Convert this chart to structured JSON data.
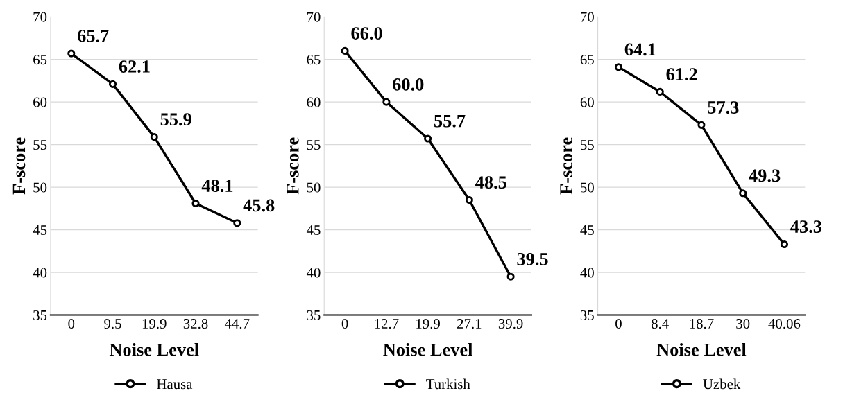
{
  "chart_data": [
    {
      "type": "line",
      "categories": [
        "0",
        "9.5",
        "19.9",
        "32.8",
        "44.7"
      ],
      "series": [
        {
          "name": "Hausa",
          "color": "#000000",
          "values": [
            65.7,
            62.1,
            55.9,
            48.1,
            45.8
          ]
        }
      ],
      "xlabel": "Noise Level",
      "ylabel": "F-score",
      "ylim": [
        35,
        70
      ],
      "yticks": [
        35,
        40,
        45,
        50,
        55,
        60,
        65,
        70
      ],
      "grid": "y",
      "legend": "bottom",
      "marker": "circle",
      "line_style": "solid",
      "data_labels": true
    },
    {
      "type": "line",
      "categories": [
        "0",
        "12.7",
        "19.9",
        "27.1",
        "39.9"
      ],
      "series": [
        {
          "name": "Turkish",
          "color": "#000000",
          "values": [
            66.0,
            60.0,
            55.7,
            48.5,
            39.5
          ],
          "value_labels": [
            "66.0",
            "60.0",
            "55.7",
            "48.5",
            "39.5"
          ]
        }
      ],
      "xlabel": "Noise Level",
      "ylabel": "F-score",
      "ylim": [
        35,
        70
      ],
      "yticks": [
        35,
        40,
        45,
        50,
        55,
        60,
        65,
        70
      ],
      "grid": "y",
      "legend": "bottom",
      "marker": "circle",
      "line_style": "solid",
      "data_labels": true
    },
    {
      "type": "line",
      "categories": [
        "0",
        "8.4",
        "18.7",
        "30",
        "40.06"
      ],
      "series": [
        {
          "name": "Uzbek",
          "color": "#000000",
          "values": [
            64.1,
            61.2,
            57.3,
            49.3,
            43.3
          ]
        }
      ],
      "xlabel": "Noise Level",
      "ylabel": "F-score",
      "ylim": [
        35,
        70
      ],
      "yticks": [
        35,
        40,
        45,
        50,
        55,
        60,
        65,
        70
      ],
      "grid": "y",
      "legend": "bottom",
      "marker": "circle",
      "line_style": "solid",
      "data_labels": true
    }
  ]
}
